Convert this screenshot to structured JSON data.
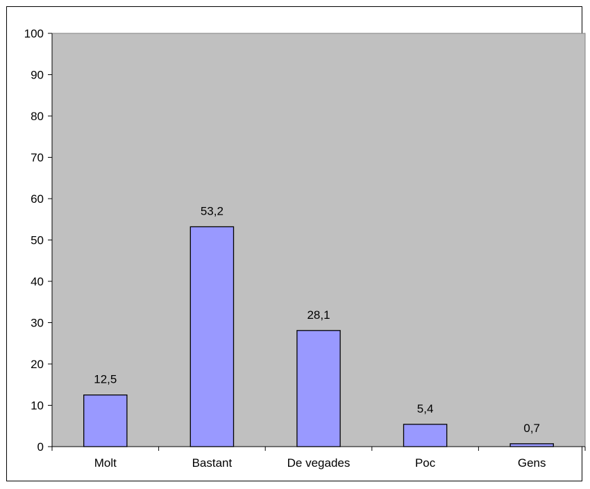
{
  "chart_data": {
    "type": "bar",
    "categories": [
      "Molt",
      "Bastant",
      "De vegades",
      "Poc",
      "Gens"
    ],
    "values": [
      12.5,
      53.2,
      28.1,
      5.4,
      0.7
    ],
    "data_labels": [
      "12,5",
      "53,2",
      "28,1",
      "5,4",
      "0,7"
    ],
    "ylim": [
      0,
      100
    ],
    "yticks": [
      0,
      10,
      20,
      30,
      40,
      50,
      60,
      70,
      80,
      90,
      100
    ],
    "ytick_labels": [
      "0",
      "10",
      "20",
      "30",
      "40",
      "50",
      "60",
      "70",
      "80",
      "90",
      "100"
    ],
    "title": "",
    "xlabel": "",
    "ylabel": "",
    "grid": false,
    "legend": "none",
    "colors": {
      "plot_background": "#c0c0c0",
      "bar_fill": "#9999ff",
      "bar_stroke": "#000000",
      "axis": "#000000"
    }
  }
}
